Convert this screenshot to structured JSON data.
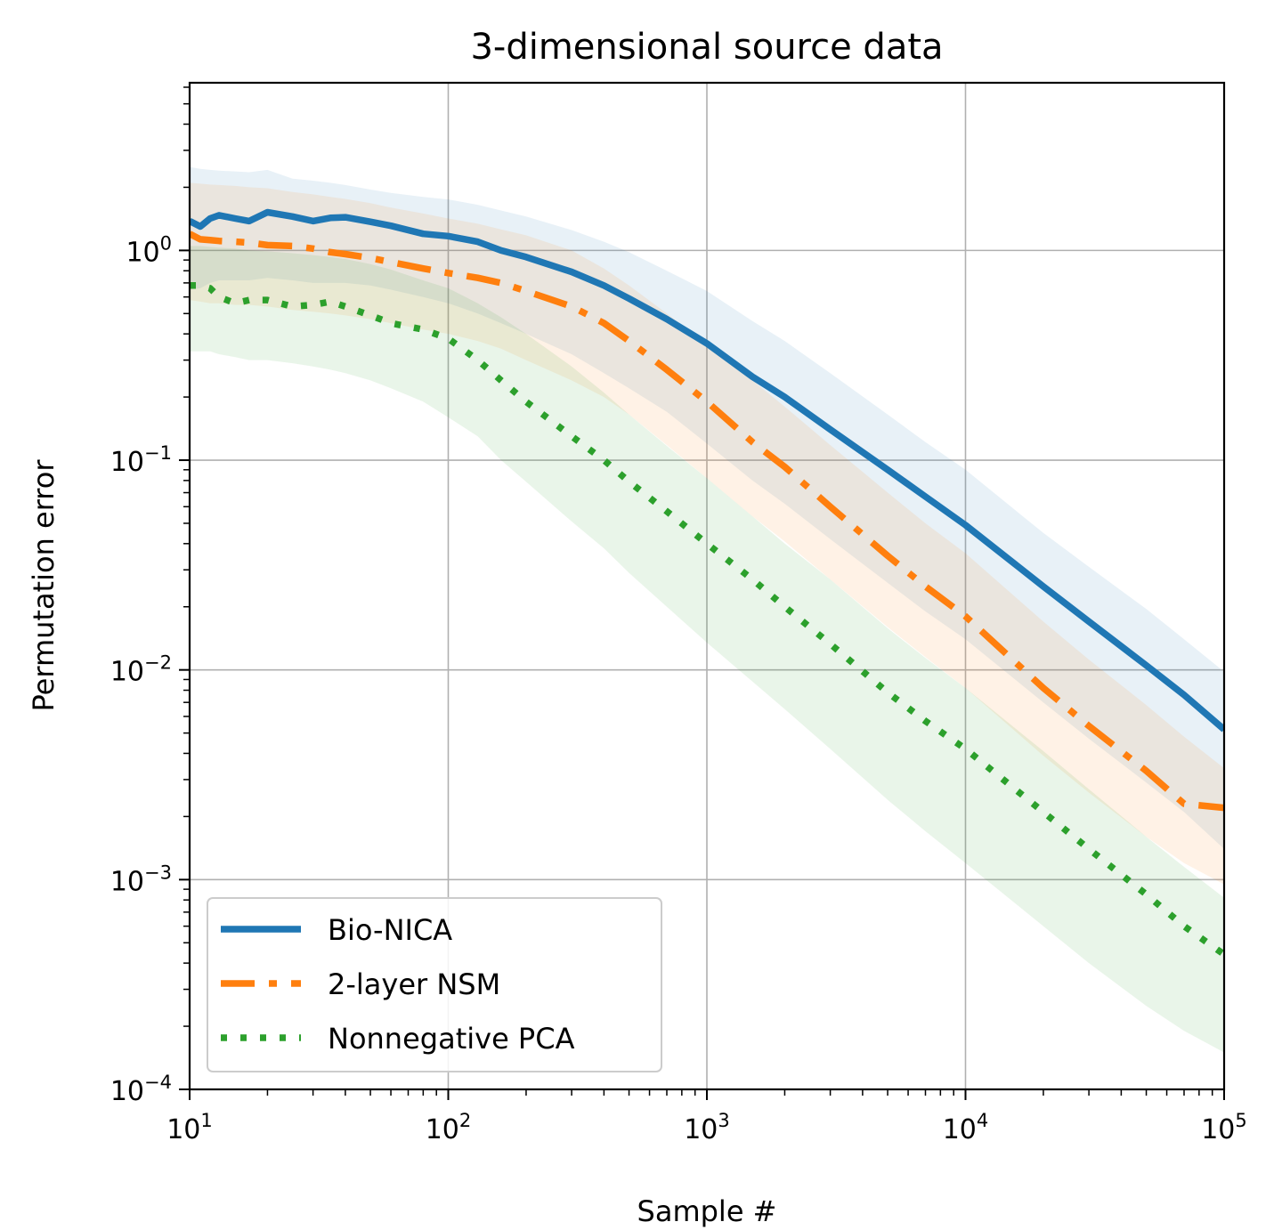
{
  "chart_data": {
    "type": "line",
    "title": "3-dimensional source data",
    "xlabel": "Sample #",
    "ylabel": "Permutation error",
    "xscale": "log",
    "yscale": "log",
    "xlim": [
      10,
      100000
    ],
    "ylim": [
      0.0001,
      6.3
    ],
    "grid": true,
    "legend_position": "lower-left",
    "x_ticks": [
      {
        "value": 10,
        "base": "10",
        "exp": "1"
      },
      {
        "value": 100,
        "base": "10",
        "exp": "2"
      },
      {
        "value": 1000,
        "base": "10",
        "exp": "3"
      },
      {
        "value": 10000,
        "base": "10",
        "exp": "4"
      },
      {
        "value": 100000,
        "base": "10",
        "exp": "5"
      }
    ],
    "y_ticks": [
      {
        "value": 0.0001,
        "base": "10",
        "exp": "−4"
      },
      {
        "value": 0.001,
        "base": "10",
        "exp": "−3"
      },
      {
        "value": 0.01,
        "base": "10",
        "exp": "−2"
      },
      {
        "value": 0.1,
        "base": "10",
        "exp": "−1"
      },
      {
        "value": 1,
        "base": "10",
        "exp": "0"
      }
    ],
    "series": [
      {
        "name": "Bio-NICA",
        "color": "#1f77b4",
        "style": "solid",
        "x": [
          10,
          11,
          12,
          13,
          15,
          17,
          20,
          25,
          30,
          35,
          40,
          50,
          60,
          80,
          100,
          130,
          160,
          200,
          300,
          400,
          500,
          700,
          1000,
          1500,
          2000,
          3000,
          5000,
          7000,
          10000,
          20000,
          30000,
          50000,
          70000,
          100000
        ],
        "y": [
          1.38,
          1.3,
          1.42,
          1.47,
          1.42,
          1.38,
          1.52,
          1.45,
          1.38,
          1.43,
          1.44,
          1.37,
          1.31,
          1.2,
          1.17,
          1.1,
          1.0,
          0.93,
          0.79,
          0.68,
          0.59,
          0.47,
          0.36,
          0.25,
          0.2,
          0.14,
          0.09,
          0.067,
          0.049,
          0.025,
          0.017,
          0.0105,
          0.0076,
          0.0052
        ],
        "band_lower": [
          0.65,
          0.66,
          0.7,
          0.72,
          0.72,
          0.72,
          0.74,
          0.72,
          0.7,
          0.7,
          0.7,
          0.68,
          0.65,
          0.6,
          0.56,
          0.5,
          0.45,
          0.4,
          0.32,
          0.26,
          0.22,
          0.17,
          0.12,
          0.08,
          0.062,
          0.042,
          0.026,
          0.019,
          0.014,
          0.007,
          0.0047,
          0.0029,
          0.0021,
          0.0014
        ],
        "band_upper": [
          2.5,
          2.45,
          2.42,
          2.4,
          2.38,
          2.36,
          2.42,
          2.2,
          2.15,
          2.1,
          2.05,
          1.95,
          1.88,
          1.8,
          1.75,
          1.65,
          1.55,
          1.45,
          1.25,
          1.1,
          0.98,
          0.8,
          0.64,
          0.46,
          0.37,
          0.26,
          0.165,
          0.122,
          0.09,
          0.045,
          0.031,
          0.0195,
          0.014,
          0.0098
        ]
      },
      {
        "name": "2-layer NSM",
        "color": "#ff7f0e",
        "style": "dashdot",
        "x": [
          10,
          11,
          12,
          13,
          15,
          17,
          20,
          25,
          30,
          35,
          40,
          50,
          60,
          80,
          100,
          130,
          160,
          200,
          300,
          400,
          500,
          700,
          1000,
          1500,
          2000,
          3000,
          5000,
          7000,
          10000,
          20000,
          30000,
          50000,
          70000,
          100000
        ],
        "y": [
          1.2,
          1.13,
          1.12,
          1.11,
          1.1,
          1.09,
          1.06,
          1.05,
          1.02,
          0.98,
          0.96,
          0.92,
          0.88,
          0.82,
          0.78,
          0.74,
          0.7,
          0.64,
          0.54,
          0.45,
          0.37,
          0.27,
          0.19,
          0.122,
          0.093,
          0.06,
          0.035,
          0.025,
          0.018,
          0.0082,
          0.0054,
          0.0033,
          0.0023,
          0.0022
        ],
        "band_lower": [
          0.58,
          0.57,
          0.56,
          0.56,
          0.55,
          0.55,
          0.54,
          0.52,
          0.51,
          0.5,
          0.49,
          0.47,
          0.45,
          0.42,
          0.4,
          0.37,
          0.34,
          0.3,
          0.24,
          0.2,
          0.165,
          0.118,
          0.082,
          0.054,
          0.041,
          0.027,
          0.016,
          0.0115,
          0.0082,
          0.0039,
          0.0026,
          0.0016,
          0.0012,
          0.00095
        ],
        "band_upper": [
          2.1,
          2.08,
          2.06,
          2.05,
          2.03,
          2.0,
          1.98,
          1.9,
          1.85,
          1.8,
          1.76,
          1.68,
          1.6,
          1.5,
          1.42,
          1.34,
          1.26,
          1.18,
          1.0,
          0.82,
          0.68,
          0.5,
          0.36,
          0.24,
          0.18,
          0.118,
          0.07,
          0.05,
          0.036,
          0.017,
          0.0112,
          0.0068,
          0.0048,
          0.0034
        ]
      },
      {
        "name": "Nonnegative PCA",
        "color": "#2ca02c",
        "style": "dotted",
        "x": [
          10,
          11,
          12,
          13,
          15,
          17,
          20,
          25,
          30,
          35,
          40,
          50,
          60,
          80,
          100,
          130,
          160,
          200,
          300,
          400,
          500,
          700,
          1000,
          1500,
          2000,
          3000,
          5000,
          7000,
          10000,
          20000,
          30000,
          50000,
          70000,
          100000
        ],
        "y": [
          0.68,
          0.68,
          0.66,
          0.6,
          0.56,
          0.58,
          0.58,
          0.54,
          0.55,
          0.57,
          0.54,
          0.49,
          0.45,
          0.42,
          0.38,
          0.3,
          0.24,
          0.19,
          0.13,
          0.1,
          0.079,
          0.057,
          0.04,
          0.027,
          0.02,
          0.0133,
          0.0078,
          0.0057,
          0.0042,
          0.0021,
          0.0014,
          0.00085,
          0.0006,
          0.00044
        ],
        "band_lower": [
          0.33,
          0.33,
          0.33,
          0.32,
          0.31,
          0.3,
          0.3,
          0.29,
          0.28,
          0.27,
          0.26,
          0.24,
          0.22,
          0.19,
          0.16,
          0.13,
          0.1,
          0.079,
          0.051,
          0.038,
          0.029,
          0.02,
          0.0135,
          0.0088,
          0.0065,
          0.0042,
          0.0024,
          0.0017,
          0.0012,
          0.0006,
          0.0004,
          0.00025,
          0.00019,
          0.00015
        ],
        "band_upper": [
          1.05,
          1.05,
          1.04,
          1.03,
          1.02,
          1.0,
          0.99,
          0.97,
          0.95,
          0.93,
          0.91,
          0.86,
          0.81,
          0.72,
          0.66,
          0.56,
          0.48,
          0.4,
          0.28,
          0.21,
          0.165,
          0.117,
          0.082,
          0.054,
          0.04,
          0.027,
          0.0158,
          0.0114,
          0.0082,
          0.0041,
          0.0027,
          0.0016,
          0.00115,
          0.00082
        ]
      }
    ]
  }
}
